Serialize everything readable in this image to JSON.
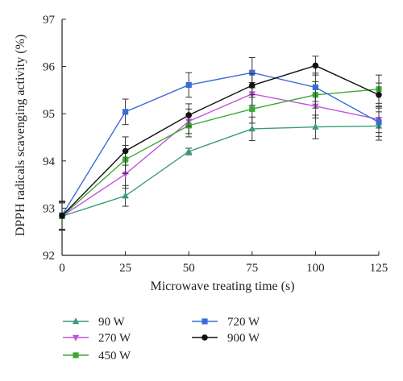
{
  "chart_data": {
    "type": "line",
    "title": "",
    "xlabel": "Microwave treating time (s)",
    "ylabel": "DPPH radicals scavenging activity (%)",
    "x": [
      0,
      25,
      50,
      75,
      100,
      125
    ],
    "xlim": [
      0,
      125
    ],
    "ylim": [
      92,
      97
    ],
    "xticks": [
      "0",
      "25",
      "50",
      "75",
      "100",
      "125"
    ],
    "yticks": [
      "92",
      "93",
      "94",
      "95",
      "96",
      "97"
    ],
    "grid": false,
    "legend_position": "bottom",
    "series": [
      {
        "name": "90 W",
        "marker": "triangle",
        "color": "#3a9a7c",
        "values": [
          92.83,
          93.26,
          94.2,
          94.68,
          94.72,
          94.74
        ],
        "errors": [
          0.28,
          0.22,
          0.07,
          0.25,
          0.25,
          0.3
        ]
      },
      {
        "name": "270 W",
        "marker": "triangle-down",
        "color": "#c054e0",
        "values": [
          92.83,
          93.72,
          94.84,
          95.42,
          95.16,
          94.88
        ],
        "errors": [
          0.3,
          0.3,
          0.26,
          0.24,
          0.25,
          0.28
        ]
      },
      {
        "name": "450 W",
        "marker": "square",
        "color": "#3ca833",
        "values": [
          92.83,
          94.03,
          94.75,
          95.1,
          95.4,
          95.52
        ],
        "errors": [
          0.28,
          0.3,
          0.24,
          0.3,
          0.28,
          0.3
        ]
      },
      {
        "name": "720 W",
        "marker": "square",
        "color": "#3b6bd6",
        "values": [
          92.85,
          95.04,
          95.61,
          95.87,
          95.56,
          94.82
        ],
        "errors": [
          0.3,
          0.27,
          0.26,
          0.32,
          0.3,
          0.3
        ]
      },
      {
        "name": "900 W",
        "marker": "circle",
        "color": "#111111",
        "values": [
          92.84,
          94.21,
          94.97,
          95.6,
          96.02,
          95.4
        ],
        "errors": [
          0.3,
          0.3,
          0.24,
          0.25,
          0.2,
          0.25
        ]
      }
    ]
  }
}
